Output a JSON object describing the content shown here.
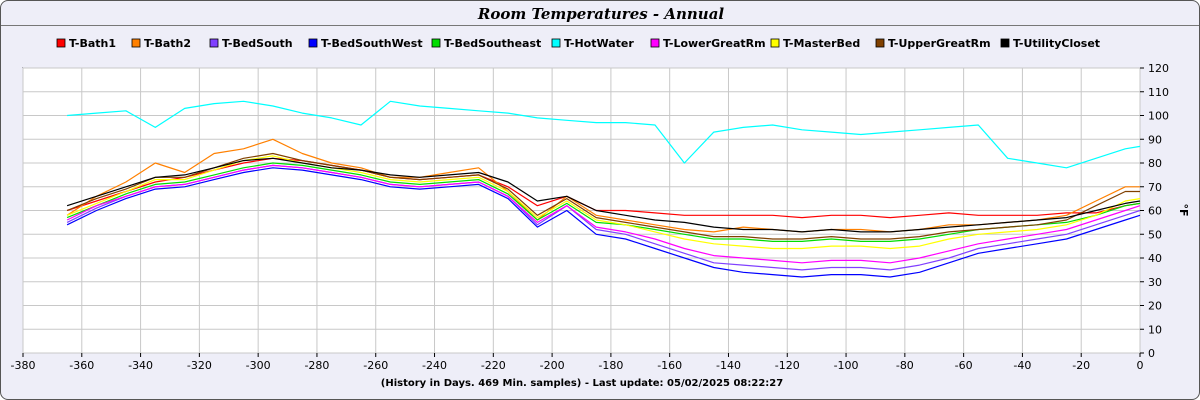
{
  "chart_data": {
    "type": "line",
    "title": "Room Temperatures - Annual",
    "xlabel": "(History in Days. 469 Min. samples) - Last update: 05/02/2025 08:22:27",
    "ylabel": "°F",
    "xlim": [
      -380,
      0
    ],
    "ylim": [
      0,
      120
    ],
    "x_ticks": [
      "-380",
      "-360",
      "-340",
      "-320",
      "-300",
      "-280",
      "-260",
      "-240",
      "-220",
      "-200",
      "-180",
      "-160",
      "-140",
      "-120",
      "-100",
      "-80",
      "-60",
      "-40",
      "-20",
      "0"
    ],
    "y_ticks": [
      "0",
      "10",
      "20",
      "30",
      "40",
      "50",
      "60",
      "70",
      "80",
      "90",
      "100",
      "110",
      "120"
    ],
    "grid": true,
    "legend_position": "top",
    "x": [
      -365,
      -355,
      -345,
      -335,
      -325,
      -315,
      -305,
      -295,
      -285,
      -275,
      -265,
      -255,
      -245,
      -235,
      -225,
      -215,
      -205,
      -195,
      -185,
      -175,
      -165,
      -155,
      -145,
      -135,
      -125,
      -115,
      -105,
      -95,
      -85,
      -75,
      -65,
      -55,
      -45,
      -35,
      -25,
      -15,
      -5,
      0
    ],
    "series": [
      {
        "name": "T-Bath1",
        "color": "#ff0000",
        "values": [
          60,
          64,
          68,
          72,
          74,
          77,
          80,
          82,
          81,
          79,
          77,
          74,
          73,
          74,
          75,
          70,
          62,
          66,
          60,
          60,
          59,
          58,
          58,
          58,
          58,
          57,
          58,
          58,
          57,
          58,
          59,
          58,
          58,
          58,
          59,
          59,
          62,
          63
        ]
      },
      {
        "name": "T-Bath2",
        "color": "#ff8000",
        "values": [
          58,
          66,
          72,
          80,
          76,
          84,
          86,
          90,
          84,
          80,
          78,
          74,
          74,
          76,
          78,
          68,
          56,
          66,
          58,
          56,
          54,
          52,
          51,
          53,
          52,
          51,
          52,
          52,
          51,
          52,
          54,
          54,
          55,
          56,
          58,
          64,
          70,
          70
        ]
      },
      {
        "name": "T-BedSouth",
        "color": "#8040ff",
        "values": [
          55,
          61,
          66,
          70,
          71,
          74,
          77,
          79,
          78,
          76,
          74,
          71,
          70,
          71,
          72,
          66,
          54,
          62,
          52,
          50,
          46,
          42,
          38,
          37,
          36,
          35,
          36,
          36,
          35,
          37,
          40,
          44,
          46,
          48,
          50,
          54,
          58,
          60
        ]
      },
      {
        "name": "T-BedSouthWest",
        "color": "#0000ff",
        "values": [
          54,
          60,
          65,
          69,
          70,
          73,
          76,
          78,
          77,
          75,
          73,
          70,
          69,
          70,
          71,
          65,
          53,
          60,
          50,
          48,
          44,
          40,
          36,
          34,
          33,
          32,
          33,
          33,
          32,
          34,
          38,
          42,
          44,
          46,
          48,
          52,
          56,
          58
        ]
      },
      {
        "name": "T-BedSoutheast",
        "color": "#00dd00",
        "values": [
          57,
          62,
          67,
          71,
          72,
          75,
          78,
          80,
          79,
          77,
          75,
          72,
          71,
          72,
          73,
          67,
          56,
          63,
          55,
          54,
          52,
          50,
          48,
          48,
          47,
          47,
          48,
          47,
          47,
          48,
          50,
          52,
          53,
          54,
          55,
          58,
          62,
          63
        ]
      },
      {
        "name": "T-HotWater",
        "color": "#00ffff",
        "values": [
          100,
          101,
          102,
          95,
          103,
          105,
          106,
          104,
          101,
          99,
          96,
          106,
          104,
          103,
          102,
          101,
          99,
          98,
          97,
          97,
          96,
          80,
          93,
          95,
          96,
          94,
          93,
          92,
          93,
          94,
          95,
          96,
          82,
          80,
          78,
          82,
          86,
          87
        ]
      },
      {
        "name": "T-LowerGreatRm",
        "color": "#ff00ff",
        "values": [
          56,
          62,
          66,
          70,
          71,
          74,
          77,
          79,
          78,
          76,
          74,
          71,
          70,
          71,
          72,
          66,
          55,
          62,
          53,
          51,
          48,
          44,
          41,
          40,
          39,
          38,
          39,
          39,
          38,
          40,
          43,
          46,
          48,
          50,
          52,
          56,
          60,
          62
        ]
      },
      {
        "name": "T-MasterBed",
        "color": "#ffff00",
        "values": [
          58,
          63,
          68,
          73,
          73,
          77,
          81,
          83,
          80,
          78,
          76,
          73,
          72,
          73,
          74,
          68,
          57,
          64,
          56,
          54,
          51,
          48,
          46,
          45,
          44,
          44,
          45,
          45,
          44,
          45,
          48,
          50,
          51,
          52,
          54,
          58,
          64,
          65
        ]
      },
      {
        "name": "T-UpperGreatRm",
        "color": "#804000",
        "values": [
          60,
          65,
          69,
          74,
          74,
          78,
          82,
          84,
          81,
          79,
          77,
          74,
          73,
          74,
          75,
          69,
          58,
          65,
          57,
          55,
          53,
          51,
          49,
          49,
          48,
          48,
          49,
          48,
          48,
          49,
          51,
          52,
          53,
          54,
          56,
          62,
          68,
          68
        ]
      },
      {
        "name": "T-UtilityCloset",
        "color": "#000000",
        "values": [
          62,
          66,
          70,
          74,
          75,
          78,
          81,
          82,
          80,
          78,
          77,
          75,
          74,
          75,
          76,
          72,
          64,
          66,
          60,
          58,
          56,
          55,
          53,
          52,
          52,
          51,
          52,
          51,
          51,
          52,
          53,
          54,
          55,
          56,
          57,
          60,
          63,
          64
        ]
      }
    ]
  }
}
